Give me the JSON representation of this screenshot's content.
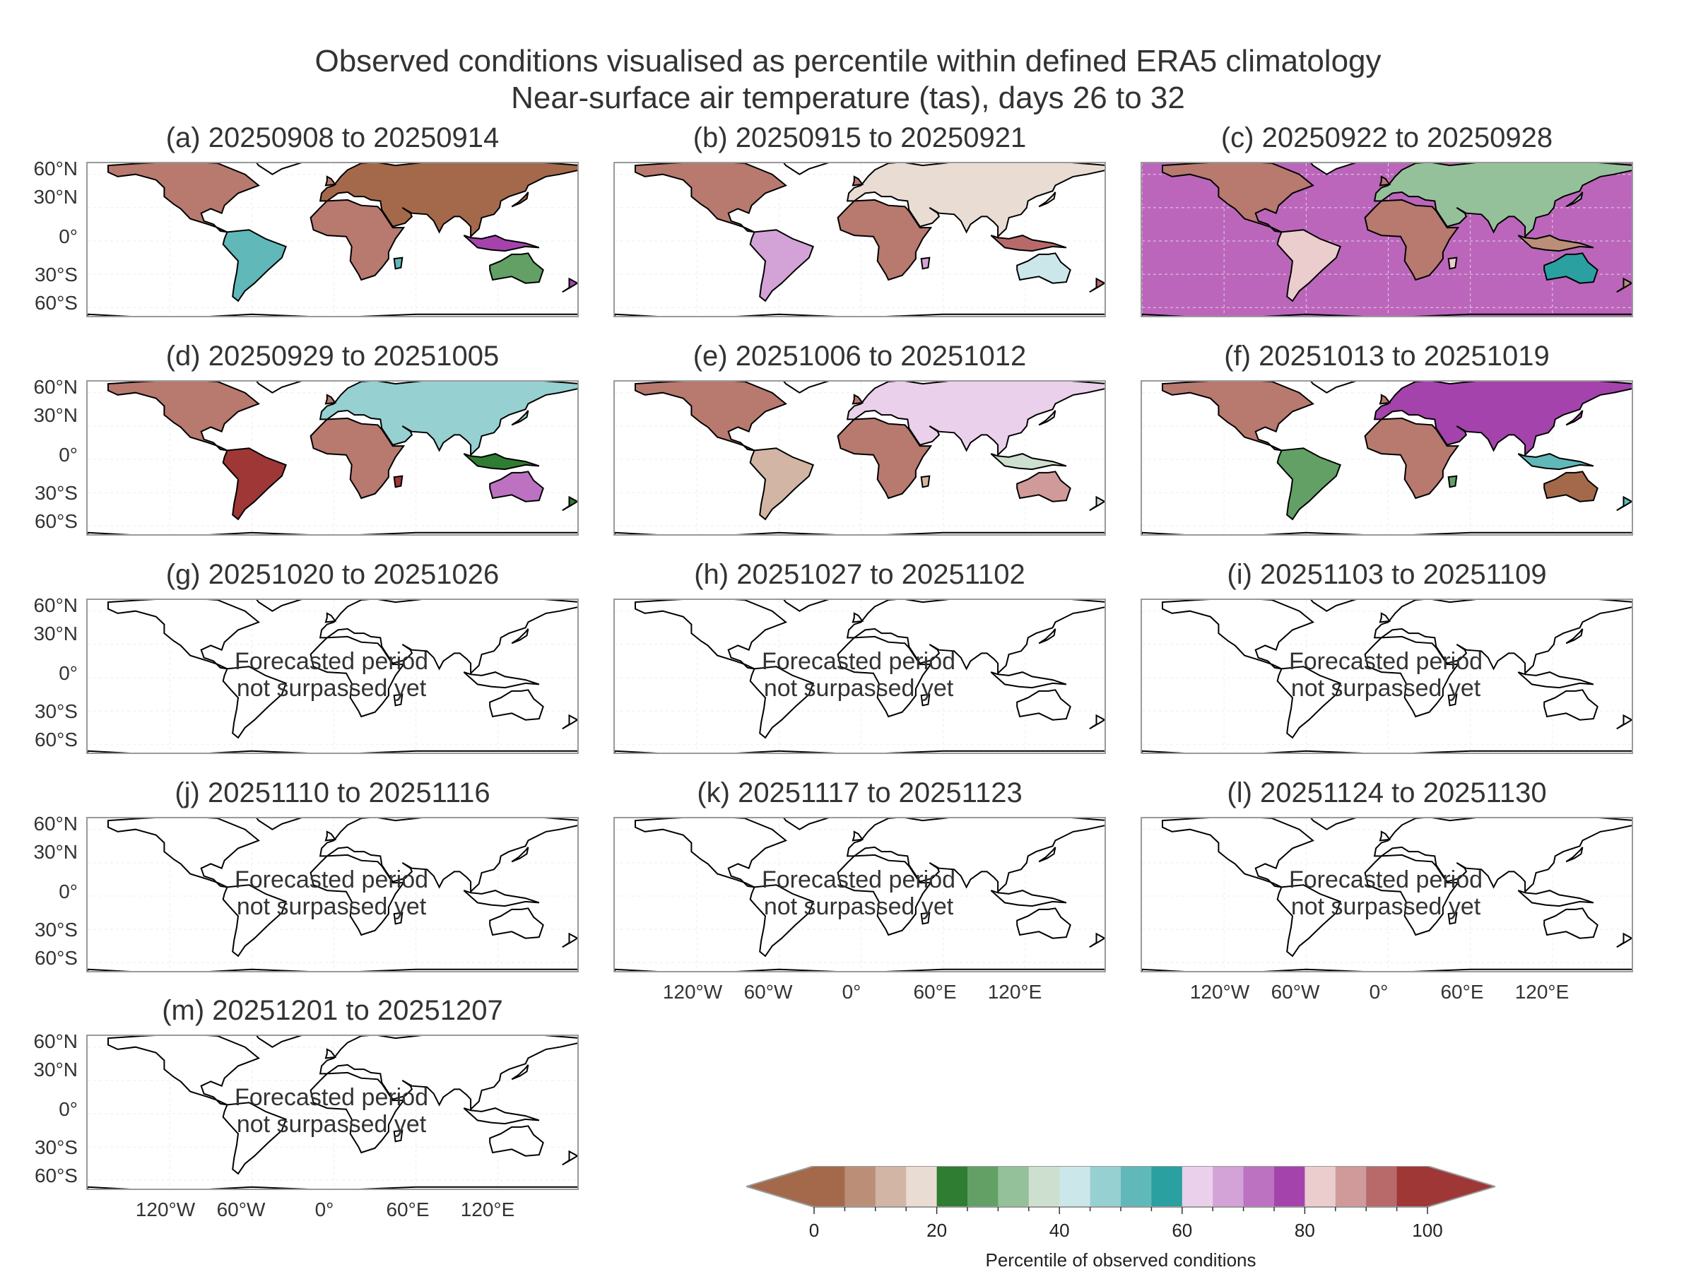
{
  "title_line1": "Observed conditions visualised as percentile within defined ERA5 climatology",
  "title_line2": "Near-surface air temperature (tas), days 26 to 32",
  "panels": [
    {
      "label": "(a) 20250908 to 20250914",
      "state": "observed"
    },
    {
      "label": "(b) 20250915 to 20250921",
      "state": "observed"
    },
    {
      "label": "(c) 20250922 to 20250928",
      "state": "observed_partial"
    },
    {
      "label": "(d) 20250929 to 20251005",
      "state": "observed"
    },
    {
      "label": "(e) 20251006 to 20251012",
      "state": "observed"
    },
    {
      "label": "(f) 20251013 to 20251019",
      "state": "observed"
    },
    {
      "label": "(g) 20251020 to 20251026",
      "state": "forecast"
    },
    {
      "label": "(h) 20251027 to 20251102",
      "state": "forecast"
    },
    {
      "label": "(i) 20251103 to 20251109",
      "state": "forecast"
    },
    {
      "label": "(j) 20251110 to 20251116",
      "state": "forecast"
    },
    {
      "label": "(k) 20251117 to 20251123",
      "state": "forecast"
    },
    {
      "label": "(l) 20251124 to 20251130",
      "state": "forecast"
    },
    {
      "label": "(m) 20251201 to 20251207",
      "state": "forecast"
    }
  ],
  "forecast_note_line1": "Forecasted period",
  "forecast_note_line2": "not surpassed yet",
  "lat_labels": [
    "60°N",
    "30°N",
    "0°",
    "30°S",
    "60°S"
  ],
  "lon_labels": [
    "120°W",
    "60°W",
    "0°",
    "60°E",
    "120°E"
  ],
  "colorbar": {
    "title": "Percentile of observed conditions",
    "tick_labels": [
      "0",
      "20",
      "40",
      "60",
      "80",
      "100"
    ],
    "extend": "both",
    "colors": [
      "#a4694a",
      "#bb8f77",
      "#d2b5a4",
      "#e9dcd3",
      "#2e7d32",
      "#62a066",
      "#95c19a",
      "#cde0cf",
      "#cce7ea",
      "#96d0d1",
      "#60b8b8",
      "#2aa0a0",
      "#ead0ea",
      "#d3a2d6",
      "#bc72c1",
      "#a543ad",
      "#ebcdcd",
      "#d19a9a",
      "#b86a6a",
      "#9f3737"
    ]
  },
  "map_colors": {
    "ocean_partial": "#bb66bb",
    "land_base": "#b8796f"
  }
}
